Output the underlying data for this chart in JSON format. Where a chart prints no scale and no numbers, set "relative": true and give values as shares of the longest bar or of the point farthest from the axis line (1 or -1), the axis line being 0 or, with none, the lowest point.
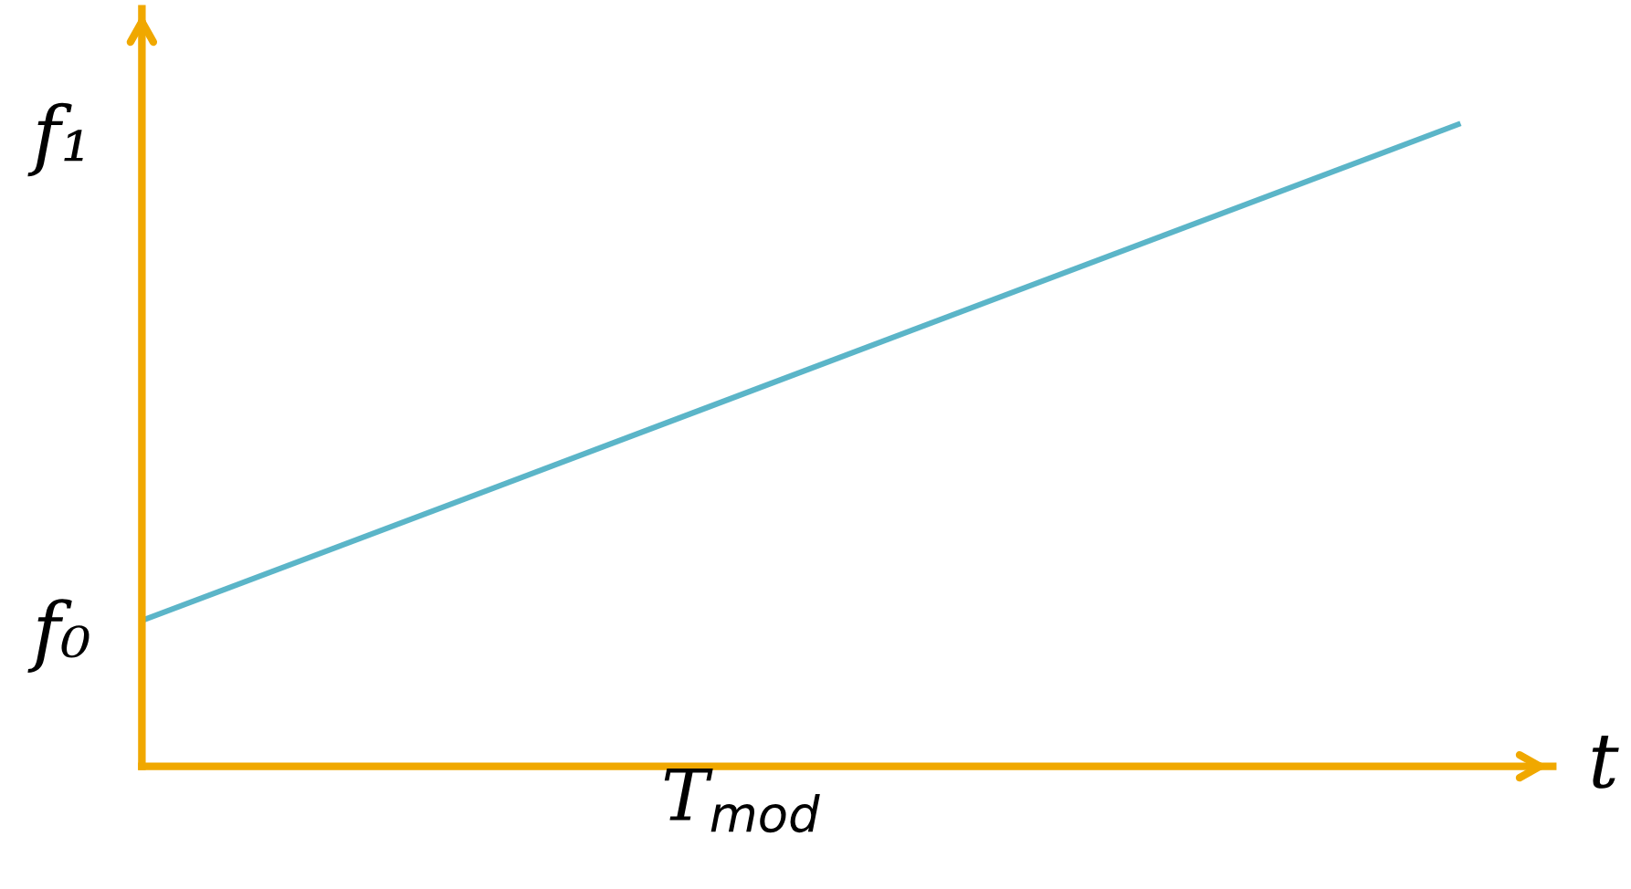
{
  "chart_data": {
    "type": "line",
    "relative": true,
    "categories": [
      null,
      null
    ],
    "series": [
      {
        "color": "#5bb5c8",
        "values": [
          0.227,
          1
        ]
      }
    ],
    "xlabel": "t",
    "annotations": [
      "f₀",
      "f₁",
      "T$_{mod}$"
    ],
    "legend": false,
    "marker": "none",
    "line_style": "solid"
  }
}
